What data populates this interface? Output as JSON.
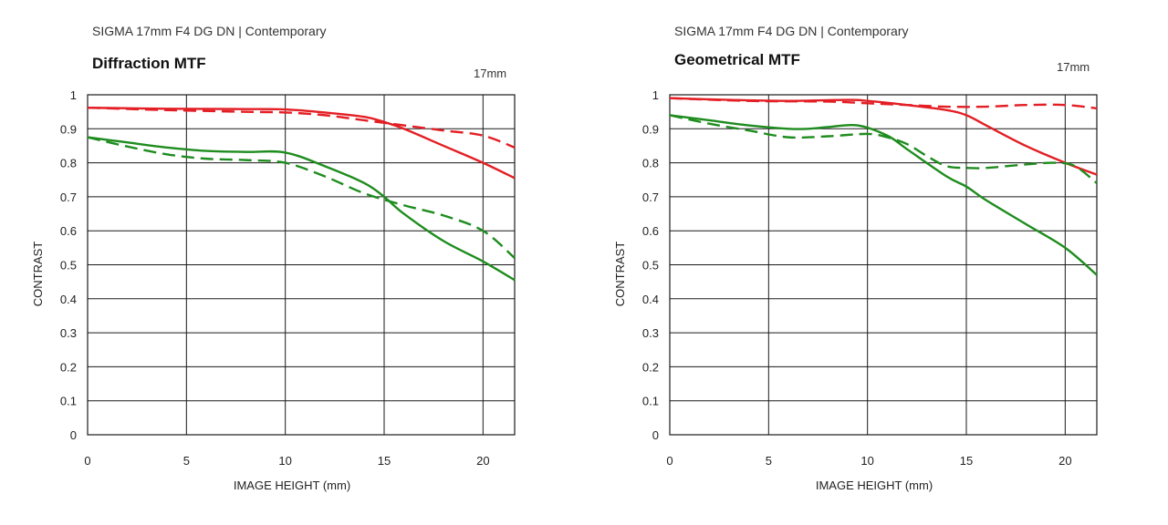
{
  "chart_data": [
    {
      "type": "line",
      "subtitle": "SIGMA 17mm F4 DG DN | Contemporary",
      "title": "Diffraction MTF",
      "focal_label": "17mm",
      "xlabel": "IMAGE HEIGHT (mm)",
      "ylabel": "CONTRAST",
      "xlim": [
        0,
        21.6
      ],
      "ylim": [
        0,
        1
      ],
      "xticks": [
        0,
        5,
        10,
        15,
        20
      ],
      "yticks": [
        0,
        0.1,
        0.2,
        0.3,
        0.4,
        0.5,
        0.6,
        0.7,
        0.8,
        0.9,
        1
      ],
      "ytick_labels": [
        "0",
        "0.1",
        "0.2",
        "0.3",
        "0.4",
        "0.5",
        "0.6",
        "0.7",
        "0.8",
        "0.9",
        "1"
      ],
      "grid": true,
      "series": [
        {
          "color": "#e31e24",
          "dash": false,
          "x": [
            0,
            4,
            8,
            10,
            12,
            14,
            15,
            16,
            18,
            20,
            21.6
          ],
          "y": [
            0.962,
            0.959,
            0.958,
            0.957,
            0.948,
            0.935,
            0.92,
            0.9,
            0.85,
            0.8,
            0.755
          ]
        },
        {
          "color": "#e31e24",
          "dash": true,
          "x": [
            0,
            4,
            8,
            10,
            12,
            14,
            16,
            18,
            20,
            21.6
          ],
          "y": [
            0.962,
            0.955,
            0.95,
            0.948,
            0.94,
            0.925,
            0.91,
            0.895,
            0.88,
            0.845
          ]
        },
        {
          "color": "#1e8c1e",
          "dash": false,
          "x": [
            0,
            2,
            4,
            6,
            8,
            10,
            12,
            14,
            15,
            16,
            18,
            20,
            21.6
          ],
          "y": [
            0.875,
            0.86,
            0.845,
            0.835,
            0.832,
            0.83,
            0.79,
            0.74,
            0.7,
            0.65,
            0.57,
            0.51,
            0.455
          ]
        },
        {
          "color": "#1e8c1e",
          "dash": true,
          "x": [
            0,
            2,
            4,
            6,
            8,
            10,
            12,
            14,
            16,
            18,
            20,
            21.6
          ],
          "y": [
            0.875,
            0.848,
            0.825,
            0.812,
            0.808,
            0.8,
            0.76,
            0.71,
            0.675,
            0.645,
            0.6,
            0.52
          ]
        }
      ]
    },
    {
      "type": "line",
      "subtitle": "SIGMA 17mm F4 DG DN | Contemporary",
      "title": "Geometrical MTF",
      "focal_label": "17mm",
      "xlabel": "IMAGE HEIGHT (mm)",
      "ylabel": "CONTRAST",
      "xlim": [
        0,
        21.6
      ],
      "ylim": [
        0,
        1
      ],
      "xticks": [
        0,
        5,
        10,
        15,
        20
      ],
      "yticks": [
        0,
        0.1,
        0.2,
        0.3,
        0.4,
        0.5,
        0.6,
        0.7,
        0.8,
        0.9,
        1
      ],
      "ytick_labels": [
        "0",
        "0.1",
        "0.2",
        "0.3",
        "0.4",
        "0.5",
        "0.6",
        "0.7",
        "0.8",
        "0.9",
        "1"
      ],
      "grid": true,
      "series": [
        {
          "color": "#e31e24",
          "dash": false,
          "x": [
            0,
            3,
            6,
            9,
            10,
            12,
            14,
            15,
            16,
            18,
            20,
            21.6
          ],
          "y": [
            0.99,
            0.985,
            0.982,
            0.985,
            0.982,
            0.97,
            0.955,
            0.94,
            0.91,
            0.85,
            0.8,
            0.765
          ]
        },
        {
          "color": "#e31e24",
          "dash": true,
          "x": [
            0,
            4,
            8,
            10,
            12,
            14,
            16,
            18,
            20,
            21.6
          ],
          "y": [
            0.99,
            0.982,
            0.98,
            0.975,
            0.97,
            0.965,
            0.965,
            0.97,
            0.97,
            0.96
          ]
        },
        {
          "color": "#1e8c1e",
          "dash": false,
          "x": [
            0,
            2,
            4,
            6,
            7,
            8,
            9.5,
            11,
            12,
            14,
            15,
            16,
            18,
            20,
            21.6
          ],
          "y": [
            0.94,
            0.925,
            0.91,
            0.9,
            0.9,
            0.905,
            0.91,
            0.88,
            0.84,
            0.76,
            0.73,
            0.69,
            0.62,
            0.55,
            0.47
          ]
        },
        {
          "color": "#1e8c1e",
          "dash": true,
          "x": [
            0,
            2,
            4,
            6,
            8,
            10,
            11,
            12,
            13,
            14,
            15,
            16,
            18,
            19.5,
            20.5,
            21.6
          ],
          "y": [
            0.94,
            0.915,
            0.895,
            0.875,
            0.878,
            0.885,
            0.875,
            0.855,
            0.82,
            0.79,
            0.785,
            0.785,
            0.795,
            0.8,
            0.79,
            0.74
          ]
        }
      ]
    }
  ]
}
